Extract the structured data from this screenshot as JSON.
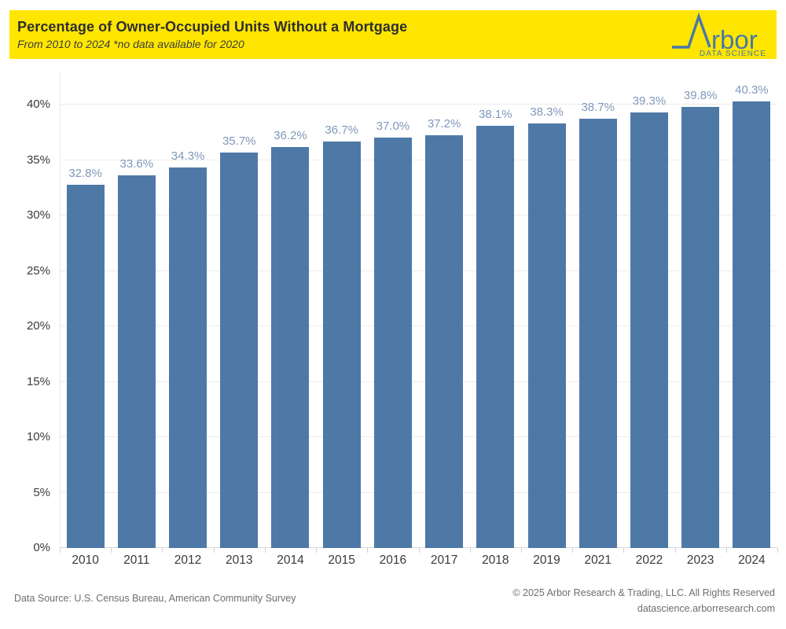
{
  "header": {
    "title": "Percentage of Owner-Occupied Units Without a Mortgage",
    "subtitle": "From 2010 to 2024 *no data available for 2020",
    "background_color": "#FFE600",
    "logo": {
      "text": "rbor",
      "tagline": "DATA SCIENCE",
      "color": "#4878A8"
    }
  },
  "chart_data": {
    "type": "bar",
    "title": "Percentage of Owner-Occupied Units Without a Mortgage",
    "subtitle": "From 2010 to 2024 *no data available for 2020",
    "categories": [
      "2010",
      "2011",
      "2012",
      "2013",
      "2014",
      "2015",
      "2016",
      "2017",
      "2018",
      "2019",
      "2021",
      "2022",
      "2023",
      "2024"
    ],
    "values": [
      32.8,
      33.6,
      34.3,
      35.7,
      36.2,
      36.7,
      37.0,
      37.2,
      38.1,
      38.3,
      38.7,
      39.3,
      39.8,
      40.3
    ],
    "value_labels": [
      "32.8%",
      "33.6%",
      "34.3%",
      "35.7%",
      "36.2%",
      "36.7%",
      "37.0%",
      "37.2%",
      "38.1%",
      "38.3%",
      "38.7%",
      "39.3%",
      "39.8%",
      "40.3%"
    ],
    "yticks": [
      {
        "label": "0%",
        "value": 0
      },
      {
        "label": "5%",
        "value": 5
      },
      {
        "label": "10%",
        "value": 10
      },
      {
        "label": "15%",
        "value": 15
      },
      {
        "label": "20%",
        "value": 20
      },
      {
        "label": "25%",
        "value": 25
      },
      {
        "label": "30%",
        "value": 30
      },
      {
        "label": "35%",
        "value": 35
      },
      {
        "label": "40%",
        "value": 40
      }
    ],
    "ylim": [
      0,
      43
    ],
    "xlabel": "",
    "ylabel": "",
    "grid": true,
    "legend_position": "none",
    "bar_color": "#4E79A7",
    "value_label_color": "#7F98BB"
  },
  "footer": {
    "source": "Data Source: U.S. Census Bureau, American Community Survey",
    "copyright": "© 2025 Arbor Research & Trading, LLC. All Rights Reserved",
    "website": "datascience.arborresearch.com"
  }
}
